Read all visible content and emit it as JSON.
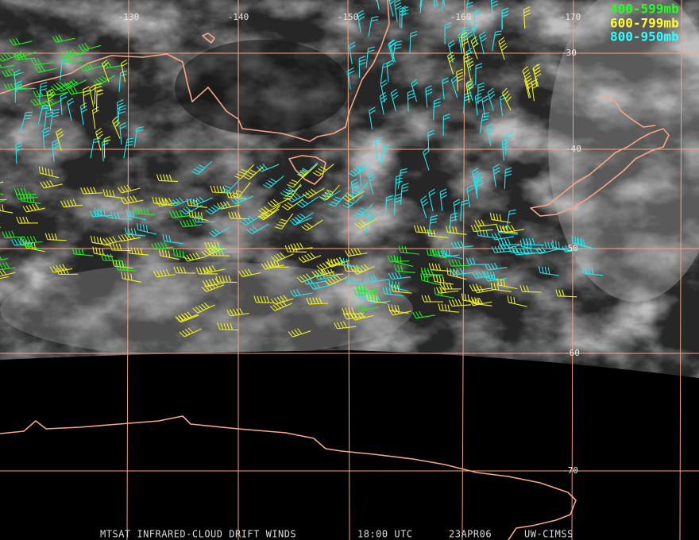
{
  "longitude_labels": [
    "-130",
    "-140",
    "-150",
    "-160",
    "-170"
  ],
  "latitude_labels": [
    "-30",
    "-40",
    "-50",
    "-60",
    "-70"
  ],
  "legend": [
    "400-599mb",
    "600-799mb",
    "800-950mb"
  ],
  "footer": {
    "product": "MTSAT INFRARED-CLOUD DRIFT WINDS",
    "time": "18:00 UTC",
    "date": "23APR06",
    "source": "UW-CIMSS"
  }
}
